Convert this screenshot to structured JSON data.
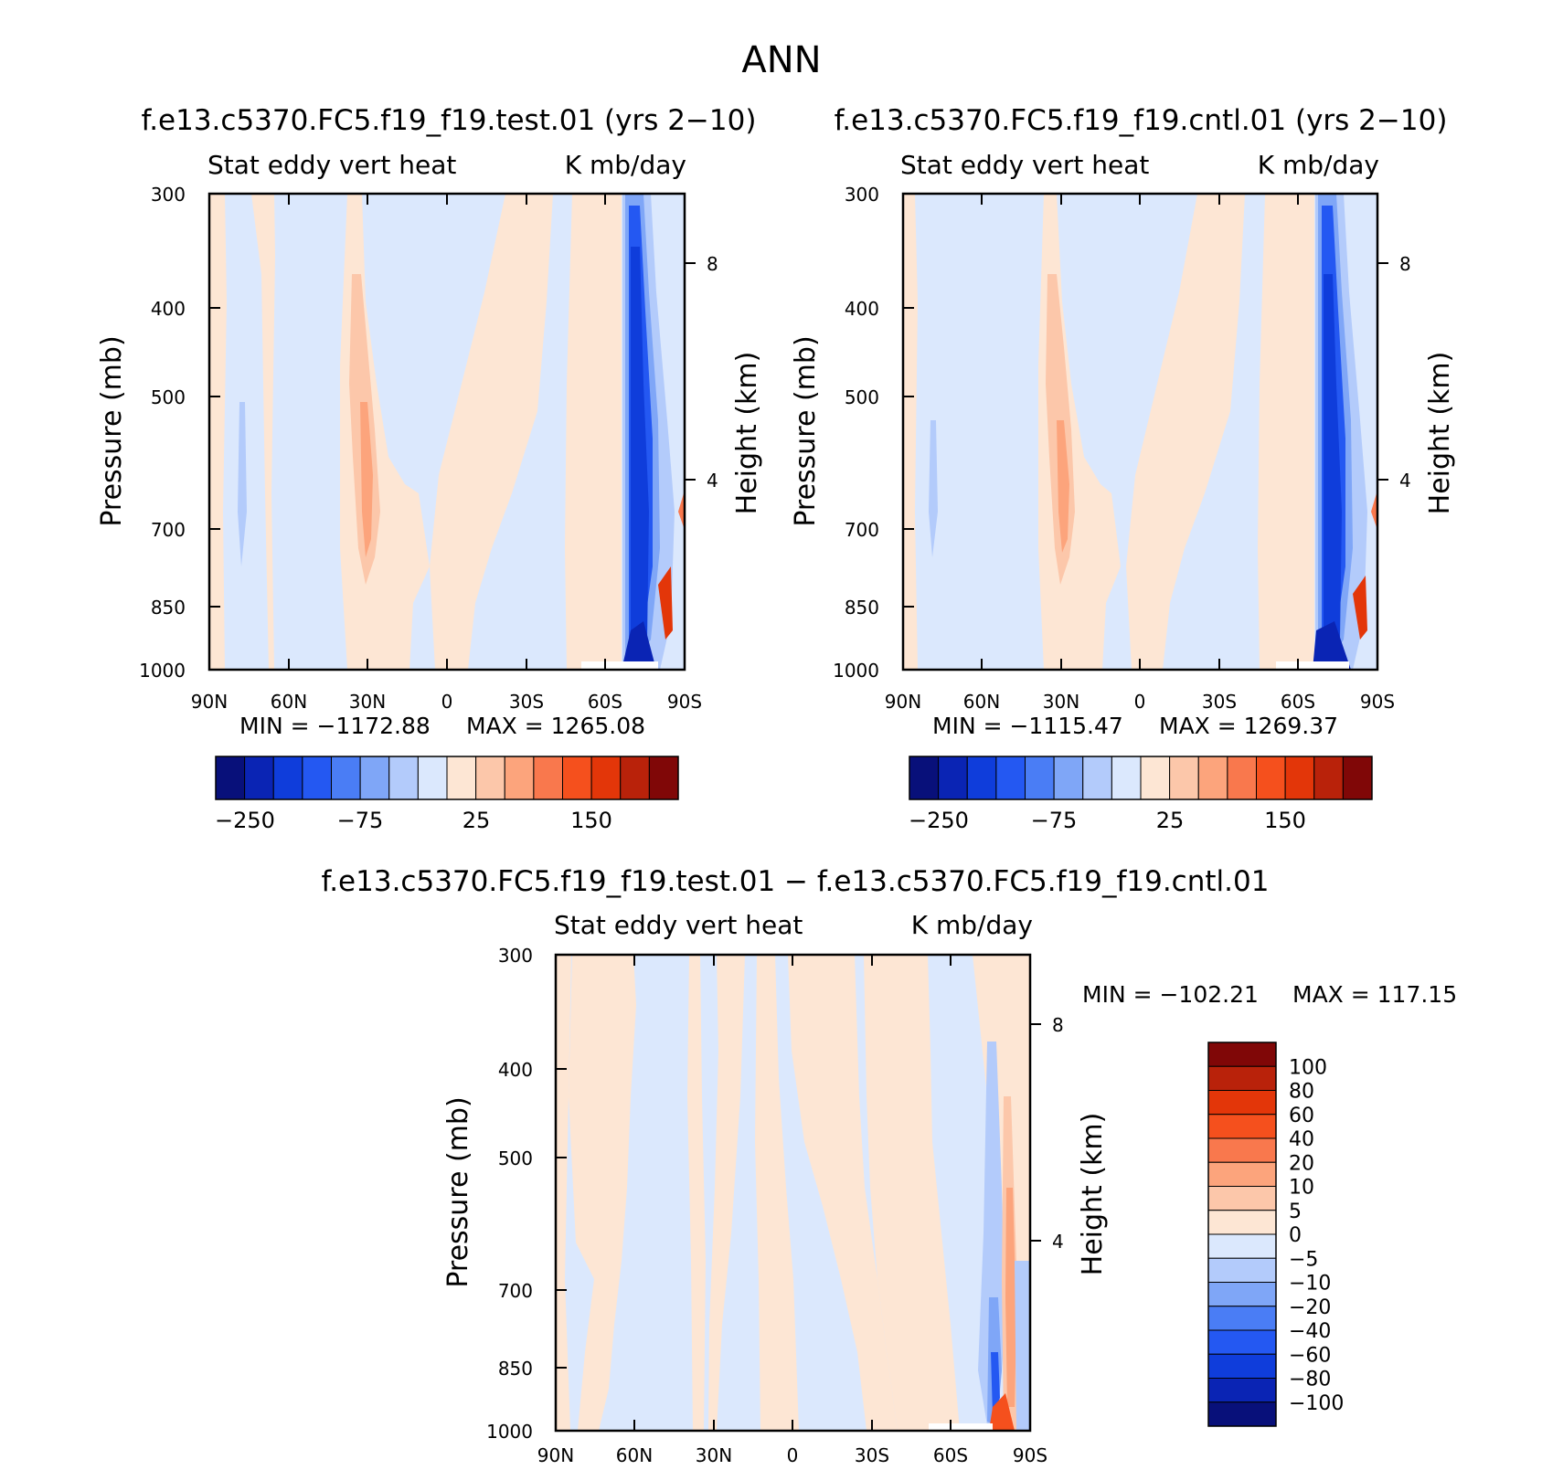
{
  "title": "ANN",
  "colors": {
    "full": [
      "#08107a",
      "#0a24b4",
      "#0f3ddb",
      "#2458f2",
      "#4a7df5",
      "#7fa6f7",
      "#b3cbfb",
      "#dbe8fd",
      "#fde6d4",
      "#fcc7aa",
      "#fca47c",
      "#f9784d",
      "#f5501d",
      "#e33609",
      "#b9220a",
      "#800707"
    ],
    "diff": [
      "#08107a",
      "#0a24b4",
      "#0f3ddb",
      "#2458f2",
      "#4a7df5",
      "#7fa6f7",
      "#b3cbfb",
      "#dbe8fd",
      "#fde6d4",
      "#fcc7aa",
      "#fca47c",
      "#f9784d",
      "#f5501d",
      "#e33609",
      "#b9220a",
      "#800707"
    ]
  },
  "chart_data": [
    {
      "type": "contour",
      "id": "test",
      "title": "f.e13.c5370.FC5.f19_f19.test.01 (yrs 2−10)",
      "left_label": "Stat eddy vert heat",
      "right_label": "K mb/day",
      "ylabel": "Pressure (mb)",
      "ylabel2": "Height (km)",
      "x_ticks": [
        "90N",
        "60N",
        "30N",
        "0",
        "30S",
        "60S",
        "90S"
      ],
      "y_ticks": [
        "300",
        "400",
        "500",
        "700",
        "850",
        "1000"
      ],
      "y2_ticks": [
        "8",
        "4"
      ],
      "min_text": "MIN = −1172.88",
      "max_text": "MAX = 1265.08",
      "colorbar_labels": [
        "−250",
        "−75",
        "25",
        "150"
      ]
    },
    {
      "type": "contour",
      "id": "cntl",
      "title": "f.e13.c5370.FC5.f19_f19.cntl.01 (yrs 2−10)",
      "left_label": "Stat eddy vert heat",
      "right_label": "K mb/day",
      "ylabel": "Pressure (mb)",
      "ylabel2": "Height (km)",
      "x_ticks": [
        "90N",
        "60N",
        "30N",
        "0",
        "30S",
        "60S",
        "90S"
      ],
      "y_ticks": [
        "300",
        "400",
        "500",
        "700",
        "850",
        "1000"
      ],
      "y2_ticks": [
        "8",
        "4"
      ],
      "min_text": "MIN = −1115.47",
      "max_text": "MAX = 1269.37",
      "colorbar_labels": [
        "−250",
        "−75",
        "25",
        "150"
      ]
    },
    {
      "type": "contour",
      "id": "diff",
      "title": "f.e13.c5370.FC5.f19_f19.test.01 − f.e13.c5370.FC5.f19_f19.cntl.01",
      "left_label": "Stat eddy vert heat",
      "right_label": "K mb/day",
      "ylabel": "Pressure (mb)",
      "ylabel2": "Height (km)",
      "x_ticks": [
        "90N",
        "60N",
        "30N",
        "0",
        "30S",
        "60S",
        "90S"
      ],
      "y_ticks": [
        "300",
        "400",
        "500",
        "700",
        "850",
        "1000"
      ],
      "y2_ticks": [
        "8",
        "4"
      ],
      "min_text": "MIN = −102.21",
      "max_text": "MAX = 117.15",
      "colorbar_labels": [
        "100",
        "80",
        "60",
        "40",
        "20",
        "10",
        "5",
        "0",
        "−5",
        "−10",
        "−20",
        "−40",
        "−60",
        "−80",
        "−100"
      ]
    }
  ]
}
